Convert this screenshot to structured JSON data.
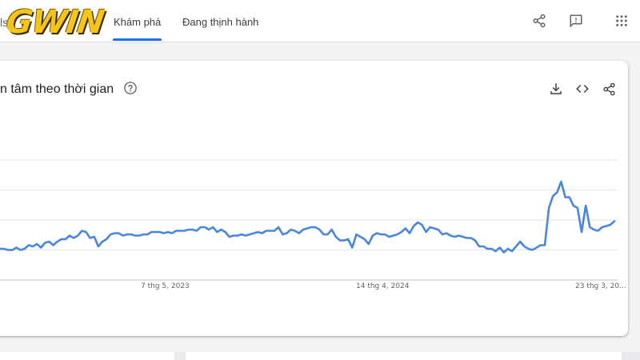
{
  "header": {
    "title_fragment": "ls",
    "logo_text": "GWIN",
    "tabs": [
      {
        "label": "Khám phá",
        "active": true
      },
      {
        "label": "Đang thịnh hành",
        "active": false
      }
    ],
    "icons": [
      "share-icon",
      "feedback-icon",
      "apps-grid-icon"
    ]
  },
  "card": {
    "title": "n tâm theo thời gian",
    "icons": [
      "help-icon",
      "download-icon",
      "embed-code-icon",
      "share-icon"
    ]
  },
  "colors": {
    "line": "#4a86dc",
    "accent": "#1a73e8",
    "gridline": "#e6e6e6",
    "logo": "#f5c518"
  },
  "chart_data": {
    "type": "line",
    "title": "",
    "xlabel": "",
    "ylabel": "",
    "x_tick_labels": [
      "7 thg 5, 2023",
      "14 thg 4, 2024",
      "23 thg 3, 20..."
    ],
    "ylim": [
      0,
      100
    ],
    "grid": true,
    "series": [
      {
        "values": [
          26,
          26,
          25,
          25,
          27,
          25,
          26,
          29,
          28,
          30,
          27,
          31,
          32,
          29,
          32,
          34,
          34,
          37,
          35,
          37,
          41,
          40,
          35,
          36,
          28,
          32,
          34,
          38,
          39,
          39,
          37,
          38,
          38,
          37,
          37,
          38,
          38,
          40,
          40,
          40,
          39,
          40,
          39,
          41,
          41,
          41,
          42,
          42,
          41,
          44,
          44,
          42,
          44,
          40,
          42,
          40,
          36,
          37,
          37,
          38,
          37,
          38,
          39,
          40,
          39,
          41,
          41,
          41,
          44,
          38,
          39,
          42,
          41,
          39,
          42,
          43,
          44,
          44,
          42,
          38,
          38,
          42,
          36,
          33,
          33,
          34,
          27,
          38,
          36,
          34,
          30,
          37,
          39,
          38,
          38,
          36,
          37,
          38,
          40,
          43,
          39,
          45,
          48,
          46,
          40,
          44,
          43,
          42,
          38,
          39,
          37,
          36,
          37,
          36,
          35,
          35,
          33,
          28,
          28,
          26,
          26,
          24,
          27,
          23,
          26,
          24,
          28,
          32,
          28,
          26,
          25,
          27,
          29,
          29,
          60,
          70,
          73,
          82,
          69,
          69,
          62,
          60,
          40,
          62,
          44,
          42,
          41,
          44,
          45,
          46,
          49
        ]
      }
    ]
  },
  "footer": {}
}
